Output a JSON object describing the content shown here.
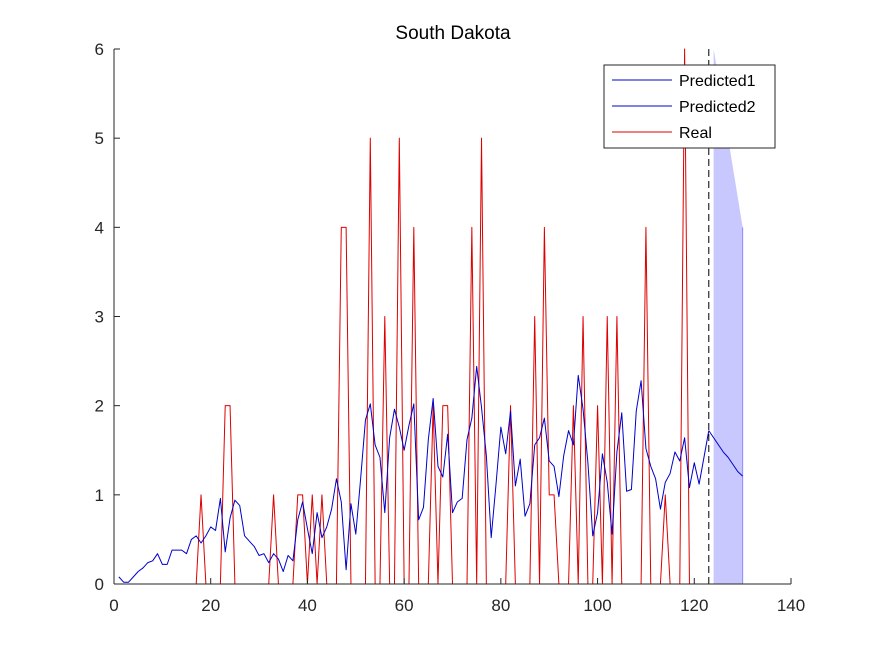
{
  "chart_data": {
    "type": "line",
    "title": "South Dakota",
    "xlabel": "",
    "ylabel": "",
    "xlim": [
      0,
      140
    ],
    "ylim": [
      0,
      6
    ],
    "xticks": [
      0,
      20,
      40,
      60,
      80,
      100,
      120,
      140
    ],
    "yticks": [
      0,
      1,
      2,
      3,
      4,
      5,
      6
    ],
    "grid": false,
    "legend_position": "top-right",
    "forecast_start_x": 123,
    "colors": {
      "predicted": "#0000cc",
      "real": "#dd0000",
      "band": "#c8c8ff",
      "axis": "#262626",
      "divider": "#000000"
    },
    "series": [
      {
        "name": "Predicted1",
        "x": [
          1,
          2,
          3,
          4,
          5,
          6,
          7,
          8,
          9,
          10,
          11,
          12,
          13,
          14,
          15,
          16,
          17,
          18,
          19,
          20,
          21,
          22,
          23,
          24,
          25,
          26,
          27,
          28,
          29,
          30,
          31,
          32,
          33,
          34,
          35,
          36,
          37,
          38,
          39,
          40,
          41,
          42,
          43,
          44,
          45,
          46,
          47,
          48,
          49,
          50,
          51,
          52,
          53,
          54,
          55,
          56,
          57,
          58,
          59,
          60,
          61,
          62,
          63,
          64,
          65,
          66,
          67,
          68,
          69,
          70,
          71,
          72,
          73,
          74,
          75,
          76,
          77,
          78,
          79,
          80,
          81,
          82,
          83,
          84,
          85,
          86,
          87,
          88,
          89,
          90,
          91,
          92,
          93,
          94,
          95,
          96,
          97,
          98,
          99,
          100,
          101,
          102,
          103,
          104,
          105,
          106,
          107,
          108,
          109,
          110,
          111,
          112,
          113,
          114,
          115,
          116,
          117,
          118,
          119,
          120,
          121,
          122,
          123
        ],
        "values": [
          0.08,
          0.02,
          0.02,
          0.08,
          0.14,
          0.18,
          0.24,
          0.26,
          0.34,
          0.22,
          0.22,
          0.38,
          0.38,
          0.38,
          0.34,
          0.5,
          0.54,
          0.46,
          0.54,
          0.64,
          0.6,
          0.96,
          0.36,
          0.74,
          0.94,
          0.88,
          0.54,
          0.48,
          0.42,
          0.32,
          0.34,
          0.24,
          0.34,
          0.28,
          0.14,
          0.32,
          0.26,
          0.72,
          0.92,
          0.62,
          0.34,
          0.8,
          0.52,
          0.64,
          0.84,
          1.18,
          0.92,
          0.16,
          0.9,
          0.56,
          1.18,
          1.84,
          2.02,
          1.56,
          1.42,
          0.8,
          1.64,
          1.96,
          1.76,
          1.5,
          1.78,
          2.02,
          0.72,
          0.86,
          1.62,
          2.08,
          1.32,
          1.2,
          1.68,
          0.8,
          0.92,
          0.96,
          1.62,
          1.86,
          2.44,
          1.98,
          1.44,
          0.52,
          1.12,
          1.76,
          1.46,
          1.94,
          1.1,
          1.4,
          0.76,
          0.9,
          1.56,
          1.64,
          1.86,
          1.38,
          1.32,
          0.98,
          1.44,
          1.72,
          1.56,
          2.34,
          1.96,
          1.36,
          0.54,
          0.8,
          1.46,
          1.14,
          0.56,
          1.48,
          1.92,
          1.04,
          1.06,
          1.94,
          2.28,
          1.52,
          1.32,
          1.18,
          0.84,
          1.14,
          1.24,
          1.48,
          1.38,
          1.64,
          1.08,
          1.36,
          1.12,
          1.42,
          1.72
        ]
      },
      {
        "name": "Predicted2",
        "x": [
          123,
          124,
          125,
          126,
          127,
          128,
          129,
          130
        ],
        "values": [
          1.72,
          1.64,
          1.56,
          1.48,
          1.42,
          1.34,
          1.26,
          1.21
        ]
      },
      {
        "name": "Real",
        "x": [
          1,
          17,
          18,
          19,
          20,
          22,
          23,
          24,
          25,
          32,
          33,
          34,
          37,
          38,
          39,
          40,
          41,
          42,
          43,
          44,
          45,
          46,
          47,
          48,
          49,
          50,
          51,
          52,
          53,
          54,
          55,
          56,
          57,
          58,
          59,
          60,
          61,
          62,
          63,
          64,
          65,
          66,
          67,
          68,
          69,
          70,
          71,
          72,
          73,
          74,
          75,
          76,
          77,
          78,
          79,
          80,
          81,
          82,
          83,
          84,
          85,
          86,
          87,
          88,
          89,
          90,
          91,
          92,
          93,
          94,
          95,
          96,
          97,
          98,
          99,
          100,
          101,
          102,
          103,
          104,
          105,
          106,
          107,
          108,
          109,
          110,
          111,
          112,
          113,
          114,
          115,
          116,
          117,
          118,
          119,
          120,
          121,
          122,
          123
        ],
        "values": [
          0,
          0,
          1,
          0,
          0,
          0,
          2,
          2,
          0,
          0,
          1,
          0,
          0,
          1,
          1,
          0,
          1,
          0,
          1,
          0,
          0,
          0,
          4,
          4,
          0,
          0,
          0,
          0,
          5,
          0,
          0,
          3,
          0,
          0,
          5,
          0,
          0,
          4,
          0,
          0,
          0,
          2,
          0,
          2,
          2,
          0,
          0,
          0,
          0,
          4,
          0,
          5,
          0,
          0,
          0,
          0,
          0,
          2,
          0,
          0,
          0,
          0,
          3,
          0,
          4,
          1,
          1,
          0,
          0,
          0,
          2,
          0,
          3,
          0,
          0,
          2,
          0,
          3,
          0,
          3,
          0,
          0,
          0,
          0,
          0,
          4,
          0,
          0,
          0,
          1,
          0,
          0,
          0,
          6,
          0,
          0,
          0,
          0,
          0
        ]
      }
    ],
    "band": {
      "x": [
        124,
        130
      ],
      "lower": [
        0,
        0
      ],
      "upper": [
        6,
        4
      ]
    }
  }
}
